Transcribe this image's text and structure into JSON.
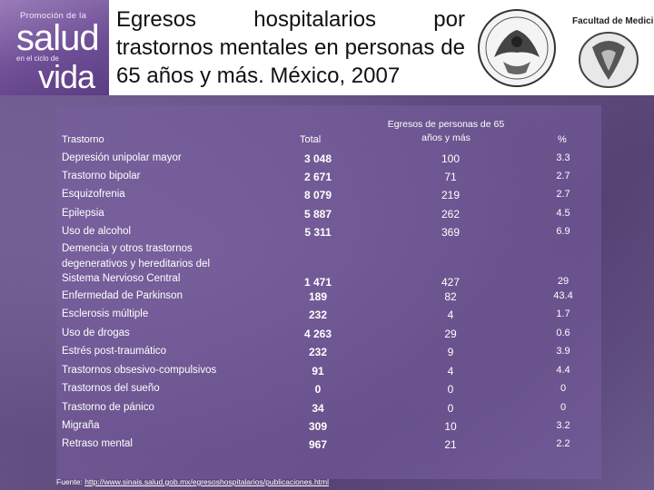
{
  "logo": {
    "top": "Promoción de la",
    "salud": "salud",
    "small": "en el ciclo de",
    "vida": "vida"
  },
  "title": "Egresos hospitalarios por trastornos mentales en personas de 65 años y más. México, 2007",
  "right_logo_label": "Facultad de Medicina",
  "table": {
    "headers": {
      "trastorno": "Trastorno",
      "total": "Total",
      "egresos": "Egresos de personas de 65 años y más",
      "pct": "%"
    },
    "rows": [
      {
        "name": "Depresión unipolar mayor",
        "total": "3 048",
        "egresos": "100",
        "pct": "3.3"
      },
      {
        "name": "Trastorno bipolar",
        "total": "2 671",
        "egresos": "71",
        "pct": "2.7"
      },
      {
        "name": "Esquizofrenia",
        "total": "8 079",
        "egresos": "219",
        "pct": "2.7"
      },
      {
        "name": "Epilepsia",
        "total": "5 887",
        "egresos": "262",
        "pct": "4.5"
      },
      {
        "name": "Uso de alcohol",
        "total": "5 311",
        "egresos": "369",
        "pct": "6.9"
      },
      {
        "name": "Demencia y otros trastornos degenerativos y hereditarios del Sistema Nervioso Central",
        "total": "1 471",
        "egresos": "427",
        "pct": "29"
      },
      {
        "name": "Enfermedad de Parkinson",
        "total": "189",
        "egresos": "82",
        "pct": "43.4"
      },
      {
        "name": "Esclerosis múltiple",
        "total": "232",
        "egresos": "4",
        "pct": "1.7"
      },
      {
        "name": "Uso de drogas",
        "total": "4 263",
        "egresos": "29",
        "pct": "0.6"
      },
      {
        "name": "Estrés post-traumático",
        "total": "232",
        "egresos": "9",
        "pct": "3.9"
      },
      {
        "name": "Trastornos obsesivo-compulsivos",
        "total": "91",
        "egresos": "4",
        "pct": "4.4"
      },
      {
        "name": "Trastornos del sueño",
        "total": "0",
        "egresos": "0",
        "pct": "0"
      },
      {
        "name": "Trastorno de pánico",
        "total": "34",
        "egresos": "0",
        "pct": "0"
      },
      {
        "name": "Migraña",
        "total": "309",
        "egresos": "10",
        "pct": "3.2"
      },
      {
        "name": "Retraso mental",
        "total": "967",
        "egresos": "21",
        "pct": "2.2"
      }
    ]
  },
  "source": {
    "label": "Fuente: ",
    "url": "http://www.sinais.salud.gob.mx/egresoshospitalarios/publicaciones.html"
  }
}
